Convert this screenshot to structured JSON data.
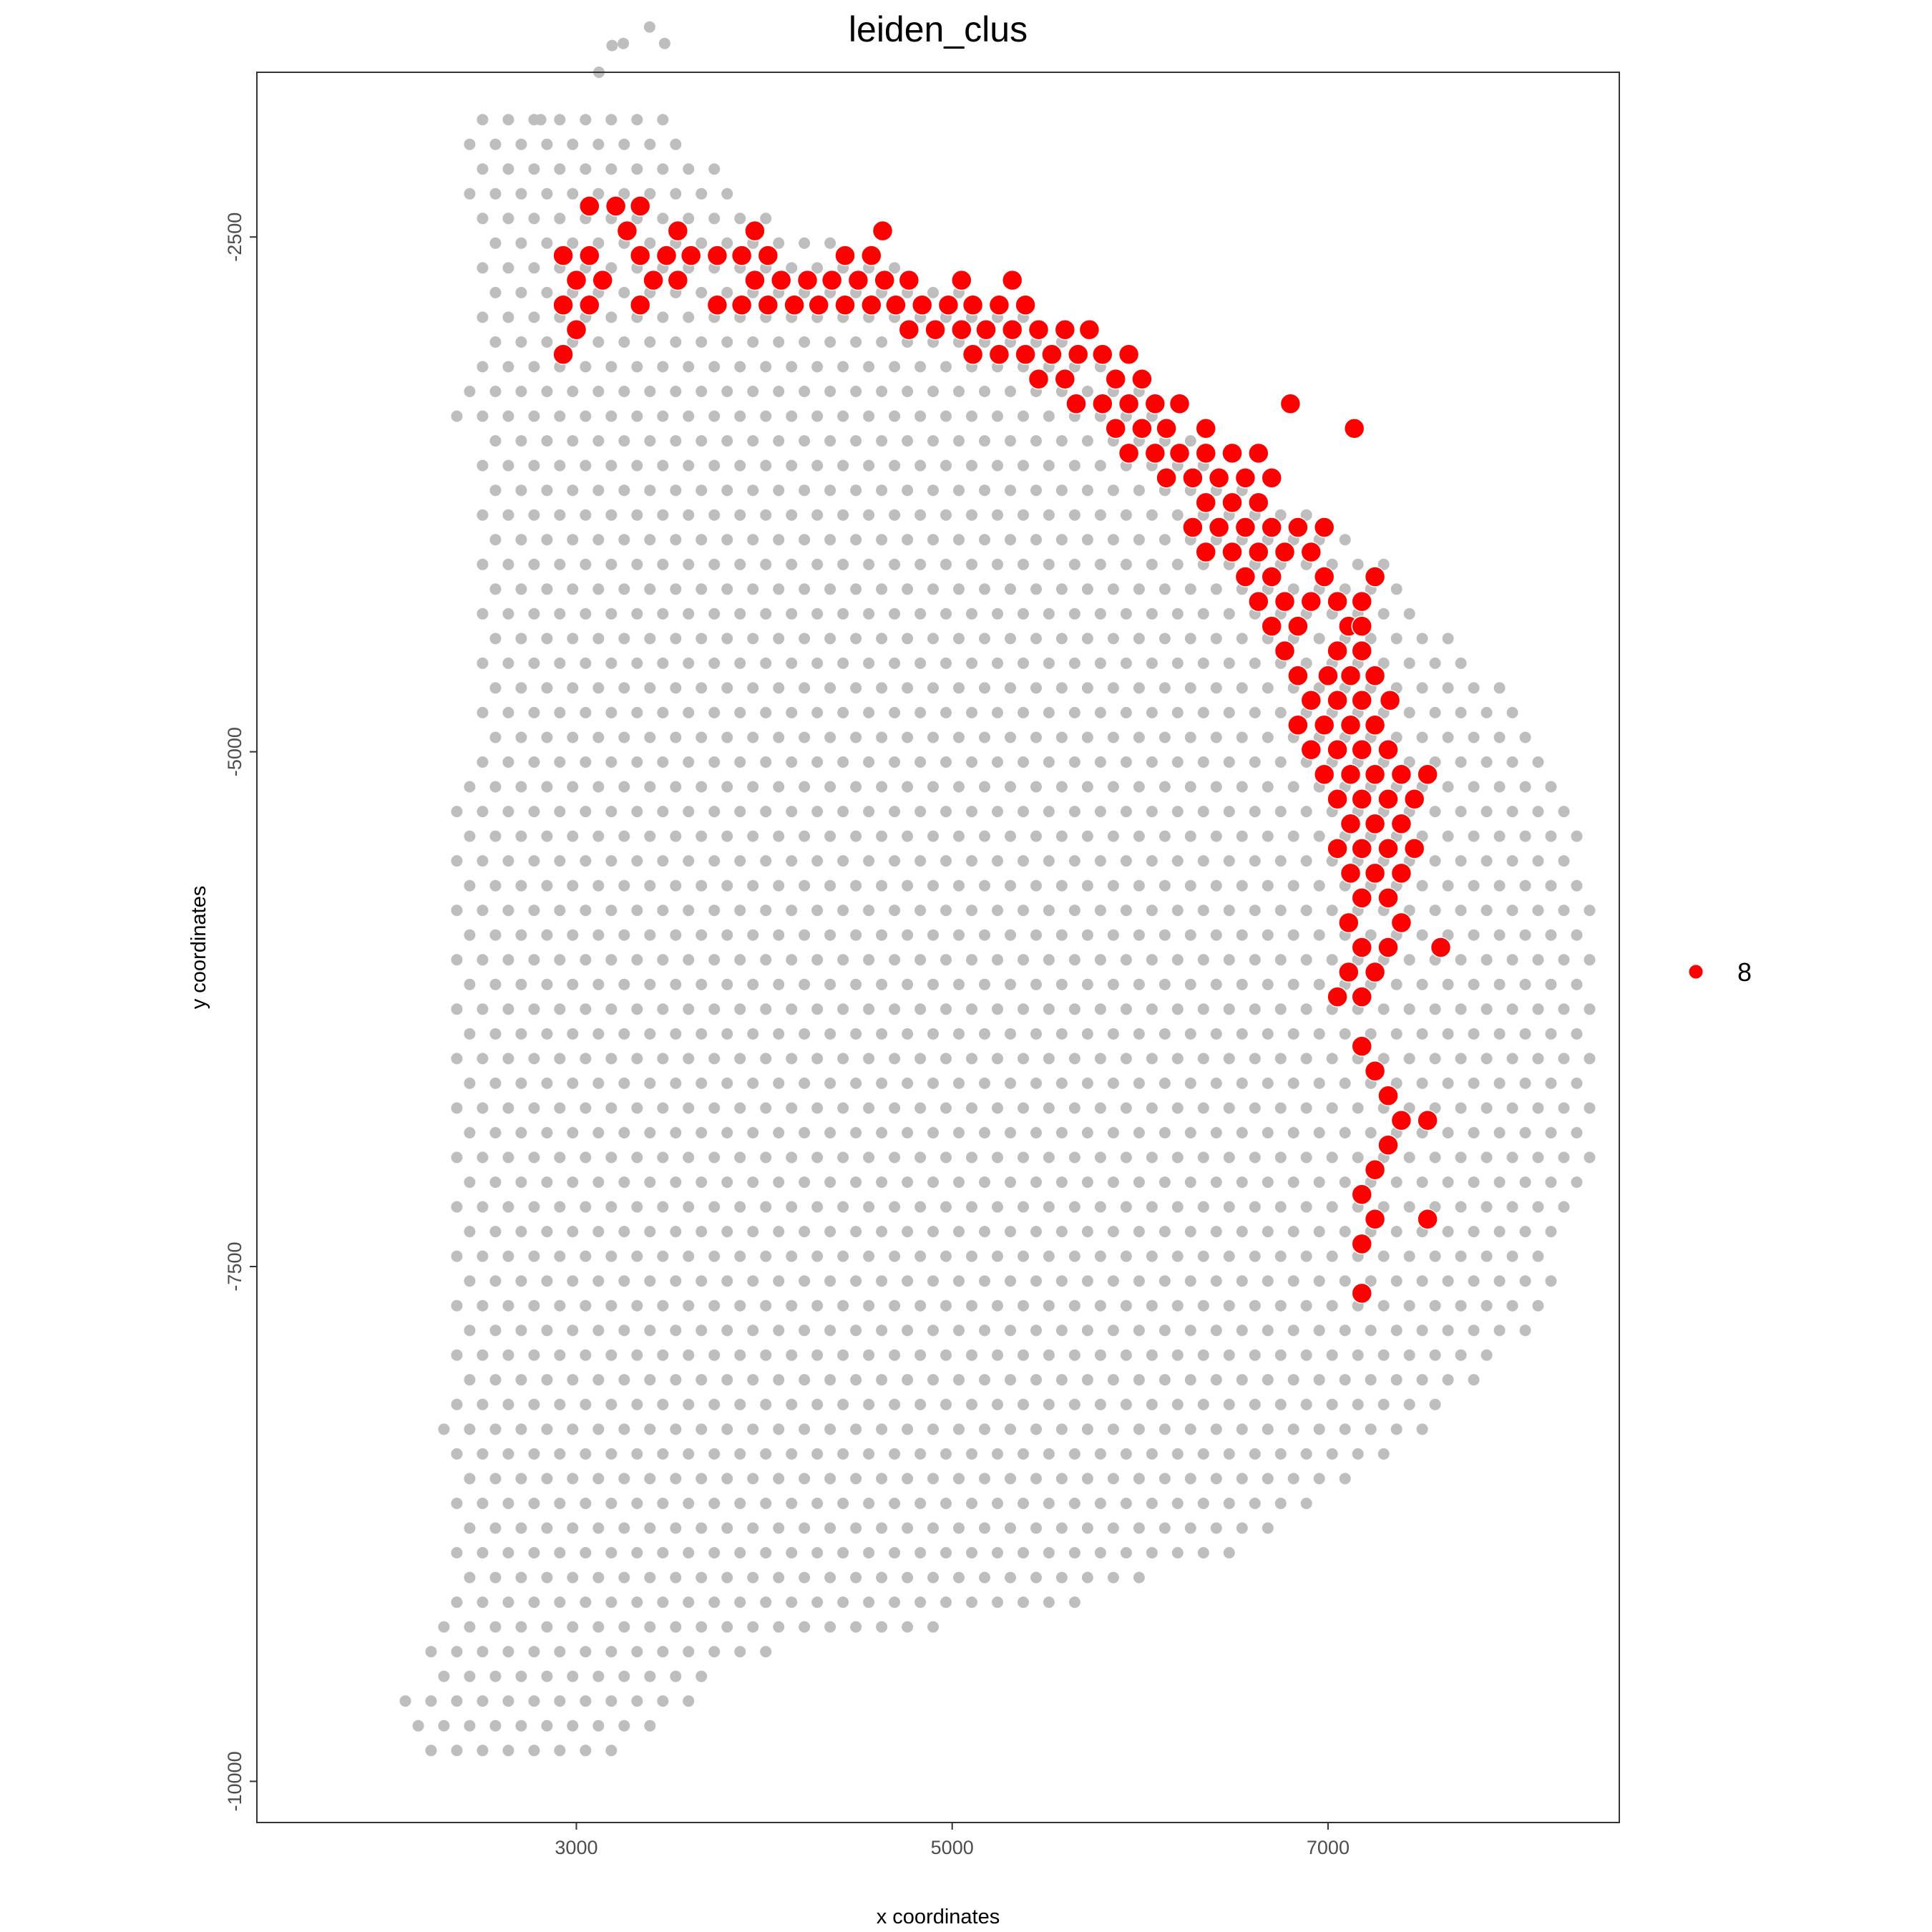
{
  "chart_data": {
    "type": "scatter",
    "title": "leiden_clus",
    "xlabel": "x coordinates",
    "ylabel": "y coordinates",
    "xlim": [
      1300,
      8550
    ],
    "ylim": [
      -10200,
      -1700
    ],
    "x_ticks": [
      3000,
      5000,
      7000
    ],
    "x_tick_labels": [
      "3000",
      "5000",
      "7000"
    ],
    "y_ticks": [
      -2500,
      -5000,
      -7500,
      -10000
    ],
    "y_tick_labels": [
      "-2500",
      "-5000",
      "-7500",
      "-10000"
    ],
    "grid": false,
    "legend": {
      "position": "right",
      "entries": [
        {
          "label": "8",
          "color": "#ff0000"
        }
      ]
    },
    "background_spot_color": "#bebebe",
    "highlight_color": "#ff0000",
    "lattice": {
      "x_step": 137,
      "y_step": 120,
      "x_range": [
        2090,
        8450
      ],
      "y_range": [
        -9940,
        -1930
      ]
    },
    "highlighted_cluster": "8",
    "series": [
      {
        "name": "8",
        "points": [
          [
            3070,
            -2350
          ],
          [
            3210,
            -2350
          ],
          [
            3340,
            -2350
          ],
          [
            3270,
            -2470
          ],
          [
            3540,
            -2470
          ],
          [
            3950,
            -2470
          ],
          [
            4630,
            -2470
          ],
          [
            2930,
            -2590
          ],
          [
            3070,
            -2590
          ],
          [
            3340,
            -2590
          ],
          [
            3480,
            -2590
          ],
          [
            3610,
            -2590
          ],
          [
            3750,
            -2590
          ],
          [
            3880,
            -2590
          ],
          [
            4020,
            -2590
          ],
          [
            4430,
            -2590
          ],
          [
            4570,
            -2590
          ],
          [
            3000,
            -2710
          ],
          [
            3140,
            -2710
          ],
          [
            3410,
            -2710
          ],
          [
            3540,
            -2710
          ],
          [
            3950,
            -2710
          ],
          [
            4090,
            -2710
          ],
          [
            4230,
            -2710
          ],
          [
            4360,
            -2710
          ],
          [
            4500,
            -2710
          ],
          [
            4640,
            -2710
          ],
          [
            4770,
            -2710
          ],
          [
            5050,
            -2710
          ],
          [
            5320,
            -2710
          ],
          [
            2930,
            -2830
          ],
          [
            3070,
            -2830
          ],
          [
            3340,
            -2830
          ],
          [
            3750,
            -2830
          ],
          [
            3880,
            -2830
          ],
          [
            4020,
            -2830
          ],
          [
            4160,
            -2830
          ],
          [
            4290,
            -2830
          ],
          [
            4430,
            -2830
          ],
          [
            4570,
            -2830
          ],
          [
            4700,
            -2830
          ],
          [
            4840,
            -2830
          ],
          [
            4980,
            -2830
          ],
          [
            5110,
            -2830
          ],
          [
            5250,
            -2830
          ],
          [
            5390,
            -2830
          ],
          [
            3000,
            -2950
          ],
          [
            4770,
            -2950
          ],
          [
            4910,
            -2950
          ],
          [
            5050,
            -2950
          ],
          [
            5180,
            -2950
          ],
          [
            5320,
            -2950
          ],
          [
            5460,
            -2950
          ],
          [
            5600,
            -2950
          ],
          [
            5730,
            -2950
          ],
          [
            2930,
            -3070
          ],
          [
            5110,
            -3070
          ],
          [
            5250,
            -3070
          ],
          [
            5390,
            -3070
          ],
          [
            5530,
            -3070
          ],
          [
            5670,
            -3070
          ],
          [
            5800,
            -3070
          ],
          [
            5940,
            -3070
          ],
          [
            5460,
            -3190
          ],
          [
            5600,
            -3190
          ],
          [
            5870,
            -3190
          ],
          [
            6010,
            -3190
          ],
          [
            5660,
            -3310
          ],
          [
            5800,
            -3310
          ],
          [
            5940,
            -3310
          ],
          [
            6080,
            -3310
          ],
          [
            6210,
            -3310
          ],
          [
            6800,
            -3310
          ],
          [
            5870,
            -3430
          ],
          [
            6010,
            -3430
          ],
          [
            6140,
            -3430
          ],
          [
            6350,
            -3430
          ],
          [
            7140,
            -3430
          ],
          [
            5940,
            -3550
          ],
          [
            6080,
            -3550
          ],
          [
            6210,
            -3550
          ],
          [
            6350,
            -3550
          ],
          [
            6490,
            -3550
          ],
          [
            6630,
            -3550
          ],
          [
            6140,
            -3670
          ],
          [
            6280,
            -3670
          ],
          [
            6420,
            -3670
          ],
          [
            6560,
            -3670
          ],
          [
            6700,
            -3670
          ],
          [
            6350,
            -3790
          ],
          [
            6490,
            -3790
          ],
          [
            6630,
            -3790
          ],
          [
            6280,
            -3910
          ],
          [
            6420,
            -3910
          ],
          [
            6560,
            -3910
          ],
          [
            6700,
            -3910
          ],
          [
            6840,
            -3910
          ],
          [
            6980,
            -3910
          ],
          [
            6350,
            -4030
          ],
          [
            6490,
            -4030
          ],
          [
            6630,
            -4030
          ],
          [
            6770,
            -4030
          ],
          [
            6910,
            -4030
          ],
          [
            6560,
            -4150
          ],
          [
            6700,
            -4150
          ],
          [
            6980,
            -4150
          ],
          [
            7250,
            -4150
          ],
          [
            6630,
            -4270
          ],
          [
            6770,
            -4270
          ],
          [
            6910,
            -4270
          ],
          [
            7050,
            -4270
          ],
          [
            7180,
            -4270
          ],
          [
            6700,
            -4390
          ],
          [
            6840,
            -4390
          ],
          [
            7110,
            -4390
          ],
          [
            7180,
            -4390
          ],
          [
            6770,
            -4510
          ],
          [
            7050,
            -4510
          ],
          [
            7180,
            -4510
          ],
          [
            6840,
            -4630
          ],
          [
            7000,
            -4630
          ],
          [
            7120,
            -4630
          ],
          [
            7250,
            -4630
          ],
          [
            6910,
            -4750
          ],
          [
            7050,
            -4750
          ],
          [
            7180,
            -4750
          ],
          [
            7330,
            -4750
          ],
          [
            6840,
            -4870
          ],
          [
            6980,
            -4870
          ],
          [
            7120,
            -4870
          ],
          [
            7250,
            -4870
          ],
          [
            6910,
            -4990
          ],
          [
            7050,
            -4990
          ],
          [
            7180,
            -4990
          ],
          [
            7320,
            -4990
          ],
          [
            6980,
            -5110
          ],
          [
            7120,
            -5110
          ],
          [
            7250,
            -5110
          ],
          [
            7390,
            -5110
          ],
          [
            7530,
            -5110
          ],
          [
            7050,
            -5230
          ],
          [
            7180,
            -5230
          ],
          [
            7320,
            -5230
          ],
          [
            7460,
            -5230
          ],
          [
            7120,
            -5350
          ],
          [
            7250,
            -5350
          ],
          [
            7390,
            -5350
          ],
          [
            7050,
            -5470
          ],
          [
            7180,
            -5470
          ],
          [
            7320,
            -5470
          ],
          [
            7460,
            -5470
          ],
          [
            7120,
            -5590
          ],
          [
            7250,
            -5590
          ],
          [
            7390,
            -5590
          ],
          [
            7180,
            -5710
          ],
          [
            7320,
            -5710
          ],
          [
            7110,
            -5830
          ],
          [
            7390,
            -5830
          ],
          [
            7180,
            -5950
          ],
          [
            7320,
            -5950
          ],
          [
            7600,
            -5950
          ],
          [
            7110,
            -6070
          ],
          [
            7250,
            -6070
          ],
          [
            7050,
            -6190
          ],
          [
            7180,
            -6190
          ],
          [
            7180,
            -6430
          ],
          [
            7250,
            -6550
          ],
          [
            7320,
            -6670
          ],
          [
            7390,
            -6790
          ],
          [
            7530,
            -6790
          ],
          [
            7320,
            -6910
          ],
          [
            7250,
            -7030
          ],
          [
            7180,
            -7150
          ],
          [
            7250,
            -7270
          ],
          [
            7530,
            -7270
          ],
          [
            7180,
            -7390
          ],
          [
            7180,
            -7630
          ]
        ]
      }
    ]
  }
}
